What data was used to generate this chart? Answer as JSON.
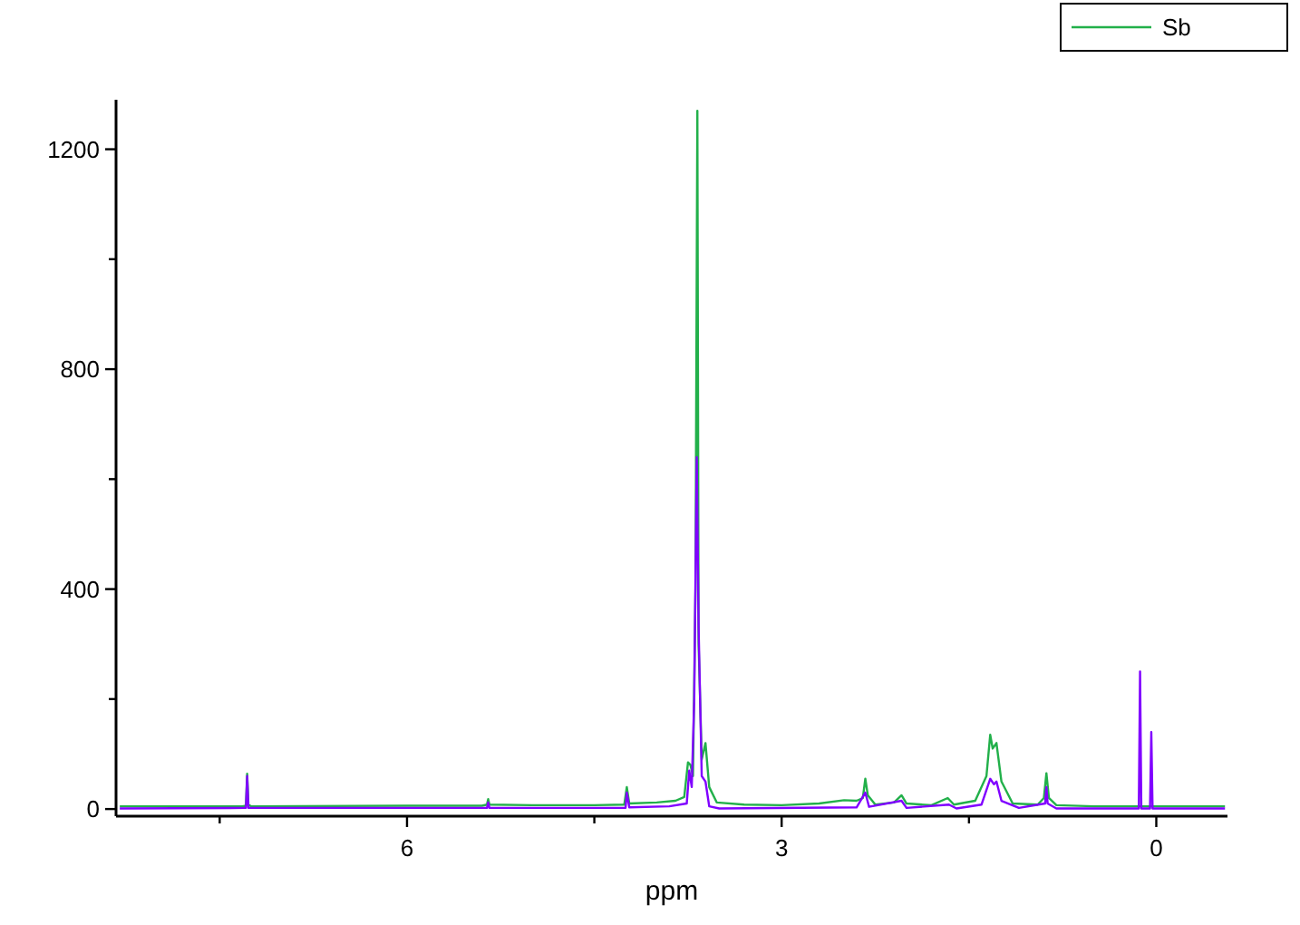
{
  "chart_data": {
    "type": "line",
    "xlabel": "ppm",
    "xlim": [
      8.33,
      -0.57
    ],
    "xticks": [
      {
        "value": 7.5,
        "label": null
      },
      6,
      {
        "value": 4.5,
        "label": null
      },
      3,
      {
        "value": 1.5,
        "label": null
      },
      0
    ],
    "ylim": [
      -13,
      1290
    ],
    "yticks": [
      0,
      {
        "value": 200,
        "label": null
      },
      400,
      {
        "value": 600,
        "label": null
      },
      800,
      {
        "value": 1000,
        "label": null
      },
      1200
    ],
    "grid": false,
    "legend": "top right",
    "marker": "none",
    "line_style": "solid",
    "series": [
      {
        "name": "Sb",
        "color": "#22b04a",
        "x": [
          8.3,
          7.32,
          7.29,
          7.28,
          7.27,
          7.25,
          6.0,
          5.4,
          5.36,
          5.35,
          5.34,
          5.0,
          4.5,
          4.26,
          4.24,
          4.22,
          4.0,
          3.85,
          3.78,
          3.75,
          3.73,
          3.71,
          3.69,
          3.675,
          3.665,
          3.64,
          3.61,
          3.58,
          3.52,
          3.3,
          3.0,
          2.7,
          2.5,
          2.4,
          2.35,
          2.33,
          2.31,
          2.25,
          2.1,
          2.04,
          2.0,
          1.8,
          1.67,
          1.62,
          1.45,
          1.36,
          1.33,
          1.31,
          1.28,
          1.24,
          1.15,
          0.95,
          0.9,
          0.88,
          0.86,
          0.8,
          0.5,
          0.13,
          0.0,
          -0.55
        ],
        "values": [
          5,
          5,
          6,
          64,
          8,
          5,
          6,
          6,
          8,
          18,
          8,
          7,
          7,
          8,
          40,
          10,
          12,
          15,
          22,
          85,
          80,
          60,
          400,
          1270,
          300,
          90,
          120,
          40,
          12,
          8,
          7,
          10,
          16,
          15,
          20,
          55,
          25,
          8,
          12,
          25,
          10,
          7,
          20,
          8,
          15,
          60,
          135,
          110,
          120,
          50,
          10,
          8,
          20,
          65,
          20,
          7,
          5,
          5,
          5,
          5
        ]
      },
      {
        "color": "#8000ff",
        "x": [
          8.3,
          7.29,
          7.28,
          7.27,
          5.36,
          5.35,
          5.34,
          4.25,
          4.24,
          4.22,
          3.9,
          3.76,
          3.74,
          3.72,
          3.7,
          3.68,
          3.665,
          3.64,
          3.61,
          3.58,
          3.5,
          2.4,
          2.33,
          2.3,
          2.04,
          2.0,
          1.66,
          1.6,
          1.4,
          1.33,
          1.3,
          1.28,
          1.24,
          1.1,
          0.89,
          0.88,
          0.87,
          0.8,
          0.14,
          0.13,
          0.12,
          0.05,
          0.04,
          0.03,
          -0.55
        ],
        "values": [
          1,
          2,
          60,
          2,
          2,
          12,
          2,
          2,
          30,
          3,
          5,
          10,
          70,
          40,
          200,
          640,
          330,
          60,
          50,
          5,
          1,
          3,
          30,
          4,
          15,
          2,
          8,
          1,
          8,
          55,
          45,
          50,
          15,
          2,
          10,
          40,
          10,
          1,
          1,
          250,
          1,
          1,
          140,
          1,
          1
        ]
      }
    ]
  }
}
